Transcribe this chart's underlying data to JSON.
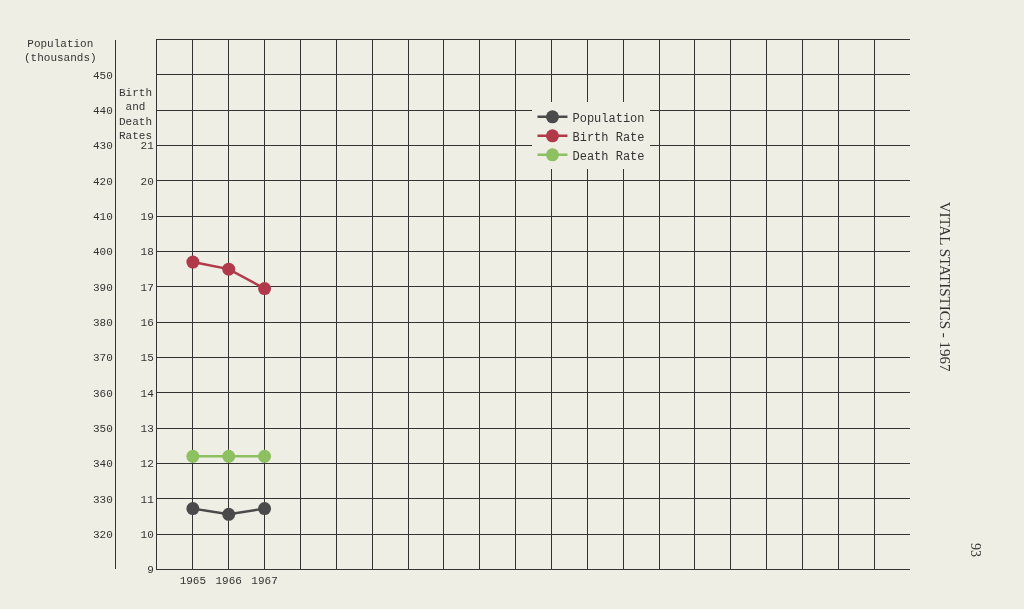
{
  "chart_data": {
    "type": "line",
    "title": "VITAL STATISTICS - 1967",
    "ylabel": "Population (thousands)",
    "y2label": "Birth and Death Rates",
    "x": [
      1965,
      1966,
      1967
    ],
    "xlim": [
      1964,
      1985
    ],
    "xticks": [
      1965,
      1966,
      1967,
      {
        "value": 1968,
        "label": null
      },
      {
        "value": 1969,
        "label": null
      },
      {
        "value": 1970,
        "label": null
      },
      {
        "value": 1971,
        "label": null
      },
      {
        "value": 1972,
        "label": null
      },
      {
        "value": 1973,
        "label": null
      },
      {
        "value": 1974,
        "label": null
      },
      {
        "value": 1975,
        "label": null
      },
      {
        "value": 1976,
        "label": null
      },
      {
        "value": 1977,
        "label": null
      },
      {
        "value": 1978,
        "label": null
      },
      {
        "value": 1979,
        "label": null
      },
      {
        "value": 1980,
        "label": null
      },
      {
        "value": 1981,
        "label": null
      },
      {
        "value": 1982,
        "label": null
      },
      {
        "value": 1983,
        "label": null
      },
      {
        "value": 1984,
        "label": null
      }
    ],
    "ylim": [
      310,
      460
    ],
    "yticks": [
      320,
      330,
      340,
      350,
      360,
      370,
      380,
      390,
      400,
      410,
      420,
      430,
      440,
      450
    ],
    "y2lim": [
      9,
      24
    ],
    "y2ticks": [
      9,
      10,
      11,
      12,
      13,
      14,
      15,
      16,
      17,
      18,
      19,
      20,
      21
    ],
    "series": [
      {
        "name": "Population",
        "color": "#4a4a4a",
        "values": [
          327.2,
          325.6,
          327.2
        ]
      },
      {
        "name": "Birth Rate",
        "color": "#b03a4a",
        "axis": "y2",
        "values": [
          17.7,
          17.5,
          16.95
        ]
      },
      {
        "name": "Death Rate",
        "color": "#8cc060",
        "axis": "y2",
        "values": [
          12.2,
          12.2,
          12.2
        ]
      }
    ],
    "marker": "circle",
    "line_style": "solid",
    "grid": true,
    "legend": "top",
    "annotations": [
      "93"
    ]
  }
}
